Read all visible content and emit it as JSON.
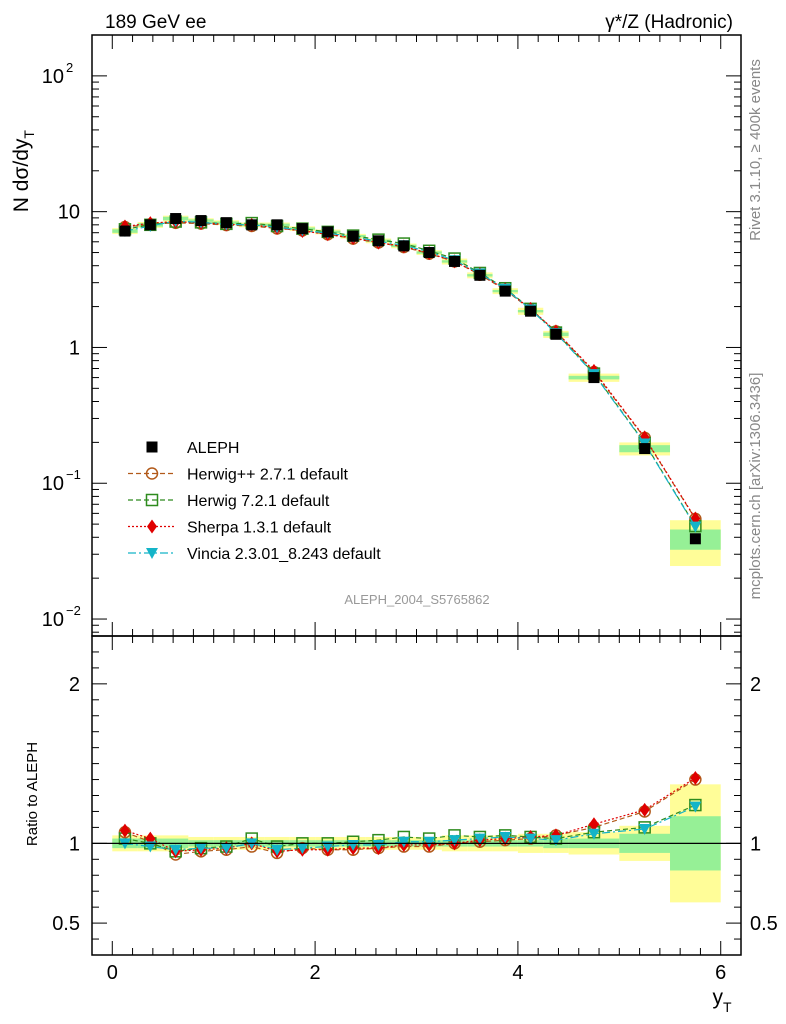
{
  "chart_data": {
    "type": "scatter",
    "title_left": "189 GeV ee",
    "title_right": "γ*/Z (Hadronic)",
    "analysis_label": "ALEPH_2004_S5765862",
    "side_label_top": "Rivet 3.1.10, ≥ 400k events",
    "side_label_bottom": "mcplots.cern.ch [arXiv:1306.3436]",
    "top_panel": {
      "ylabel": "N dσ/dy_T",
      "yscale": "log",
      "ylim": [
        0.0075,
        200
      ],
      "ytick_labels": [
        {
          "value": 100,
          "mantissa": "10",
          "exp": "2"
        },
        {
          "value": 10,
          "mantissa": "10",
          "exp": ""
        },
        {
          "value": 1,
          "mantissa": "1",
          "exp": ""
        },
        {
          "value": 0.1,
          "mantissa": "10",
          "exp": "−1"
        },
        {
          "value": 0.01,
          "mantissa": "10",
          "exp": "−2"
        }
      ]
    },
    "bottom_panel": {
      "ylabel": "Ratio to ALEPH",
      "ylim": [
        0.3,
        2.3
      ],
      "ytick_labels": [
        "0.5",
        "1",
        "2"
      ],
      "ytick_values": [
        0.5,
        1,
        2
      ]
    },
    "x": {
      "label": "y_T",
      "xlim": [
        -0.2,
        6.2
      ],
      "tick_labels": [
        "0",
        "2",
        "4",
        "6"
      ],
      "tick_values": [
        0,
        2,
        4,
        6
      ]
    },
    "bin_edges": [
      0,
      0.25,
      0.5,
      0.75,
      1.0,
      1.25,
      1.5,
      1.75,
      2.0,
      2.25,
      2.5,
      2.75,
      3.0,
      3.25,
      3.5,
      3.75,
      4.0,
      4.25,
      4.5,
      5.0,
      5.5,
      6.0
    ],
    "bin_centers": [
      0.125,
      0.375,
      0.625,
      0.875,
      1.125,
      1.375,
      1.625,
      1.875,
      2.125,
      2.375,
      2.625,
      2.875,
      3.125,
      3.375,
      3.625,
      3.875,
      4.125,
      4.375,
      4.75,
      5.25,
      5.75
    ],
    "data": {
      "name": "ALEPH",
      "values": [
        7.2,
        8.0,
        8.9,
        8.6,
        8.3,
        8.0,
        8.0,
        7.5,
        7.1,
        6.6,
        6.1,
        5.6,
        5.0,
        4.3,
        3.4,
        2.6,
        1.85,
        1.25,
        0.6,
        0.18,
        0.039
      ],
      "band_inner": [
        0.03,
        0.03,
        0.03,
        0.02,
        0.02,
        0.02,
        0.02,
        0.02,
        0.02,
        0.02,
        0.02,
        0.02,
        0.02,
        0.02,
        0.02,
        0.02,
        0.02,
        0.03,
        0.03,
        0.06,
        0.17
      ],
      "band_outer": [
        0.05,
        0.05,
        0.05,
        0.04,
        0.04,
        0.04,
        0.04,
        0.04,
        0.04,
        0.04,
        0.04,
        0.04,
        0.04,
        0.05,
        0.05,
        0.05,
        0.06,
        0.06,
        0.07,
        0.11,
        0.37
      ]
    },
    "series": [
      {
        "name": "Herwig++ 2.7.1 default",
        "color": "#b25a1a",
        "marker": "circle-open",
        "dash": "5,3",
        "ratio": [
          1.07,
          1.01,
          0.93,
          0.95,
          0.96,
          0.98,
          0.94,
          0.97,
          0.96,
          0.96,
          0.97,
          0.98,
          0.98,
          1.0,
          1.01,
          1.02,
          1.03,
          1.05,
          1.1,
          1.2,
          1.4
        ]
      },
      {
        "name": "Herwig 7.2.1 default",
        "color": "#2e8b1e",
        "marker": "square-open",
        "dash": "5,3",
        "ratio": [
          1.03,
          1.0,
          0.95,
          0.97,
          0.98,
          1.03,
          0.98,
          1.0,
          1.0,
          1.01,
          1.02,
          1.04,
          1.03,
          1.05,
          1.04,
          1.05,
          1.04,
          1.03,
          1.07,
          1.1,
          1.24
        ]
      },
      {
        "name": "Sherpa 1.3.1 default",
        "color": "#e00000",
        "marker": "diamond",
        "dash": "2,2",
        "ratio": [
          1.08,
          1.03,
          0.95,
          0.96,
          0.97,
          1.0,
          0.95,
          0.96,
          0.96,
          0.97,
          0.97,
          0.99,
          0.99,
          1.0,
          1.02,
          1.03,
          1.04,
          1.05,
          1.12,
          1.21,
          1.41
        ]
      },
      {
        "name": "Vincia 2.3.01_8.243 default",
        "color": "#14b4c8",
        "marker": "triangle-down",
        "dash": "8,3,2,3",
        "ratio": [
          1.0,
          0.98,
          0.96,
          0.97,
          0.97,
          1.0,
          0.96,
          0.97,
          0.98,
          0.99,
          0.99,
          1.01,
          1.01,
          1.02,
          1.03,
          1.04,
          1.03,
          1.02,
          1.06,
          1.09,
          1.23
        ]
      }
    ]
  }
}
